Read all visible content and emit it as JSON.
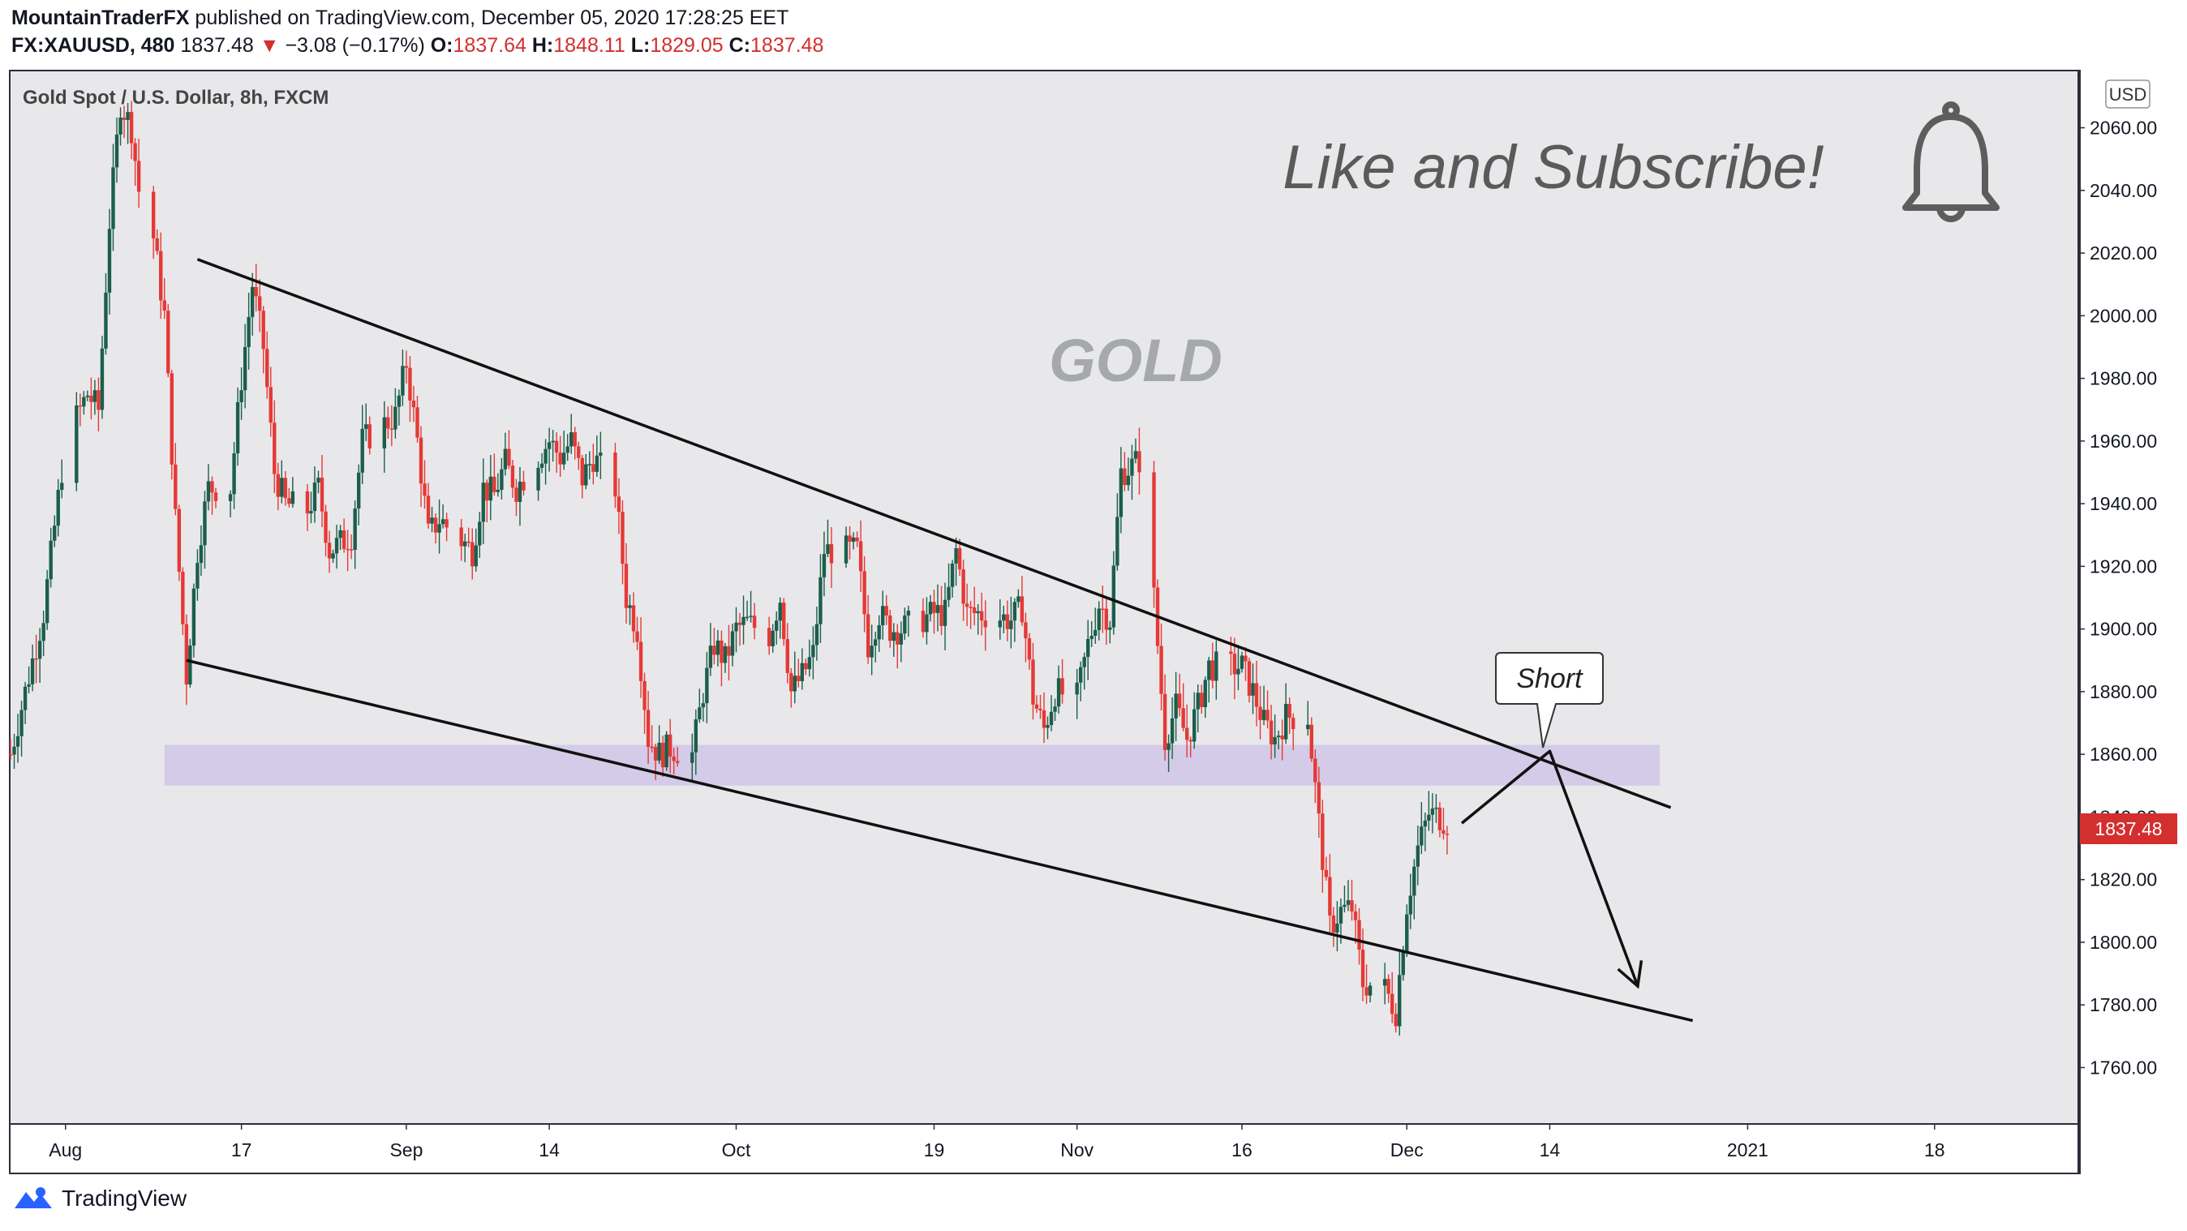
{
  "header": {
    "author": "MountainTraderFX",
    "published_text": "published on TradingView.com, December 05, 2020 17:28:25 EET",
    "symbol": "FX:XAUUSD, 480",
    "last": "1837.48",
    "change_arrow": "▼",
    "change": "−3.08 (−0.17%)",
    "o_label": "O:",
    "o_value": "1837.64",
    "h_label": "H:",
    "h_value": "1848.11",
    "l_label": "L:",
    "l_value": "1829.05",
    "c_label": "C:",
    "c_value": "1837.48"
  },
  "footer": {
    "brand": "TradingView",
    "icon": "tradingview-logo-icon"
  },
  "colors": {
    "up": "#1b5e4b",
    "down": "#e53935",
    "panel_bg": "#e8e8eb",
    "zone": "#cfc6e6",
    "price_label_bg": "#d32f2f"
  },
  "chart_data": {
    "type": "candlestick",
    "title": "Gold Spot / U.S. Dollar, 8h, FXCM",
    "currency_badge": "USD",
    "watermark": "GOLD",
    "promo_text": "Like and Subscribe!",
    "promo_icon": "bell-icon",
    "annotation": "Short",
    "last_price_label": "1837.48",
    "y_ticks": [
      "2060.00",
      "2040.00",
      "2020.00",
      "2000.00",
      "1980.00",
      "1960.00",
      "1940.00",
      "1920.00",
      "1900.00",
      "1880.00",
      "1860.00",
      "1840.00",
      "1820.00",
      "1800.00",
      "1780.00",
      "1760.00"
    ],
    "x_ticks": [
      "Aug",
      "17",
      "Sep",
      "14",
      "Oct",
      "19",
      "Nov",
      "16",
      "Dec",
      "14",
      "2021",
      "18"
    ],
    "ylim": [
      1742,
      2078
    ],
    "x_range": [
      "2020-07-27",
      "2021-01-31"
    ],
    "support_zone": [
      1850,
      1863
    ],
    "upper_trendline": [
      [
        "2020-08-13",
        2018
      ],
      [
        "2020-12-25",
        1843
      ]
    ],
    "lower_trendline": [
      [
        "2020-08-12",
        1890
      ],
      [
        "2020-12-27",
        1775
      ]
    ],
    "projection": [
      [
        "2020-12-06",
        1838
      ],
      [
        "2020-12-14",
        1861
      ],
      [
        "2020-12-22",
        1786
      ]
    ],
    "series": [
      {
        "waypoints": [
          [
            "2020-07-27",
            1860
          ],
          [
            "2020-07-28",
            1875
          ],
          [
            "2020-07-30",
            1905
          ],
          [
            "2020-08-01",
            1960
          ],
          [
            "2020-08-03",
            1975
          ],
          [
            "2020-08-04",
            1970
          ],
          [
            "2020-08-05",
            2030
          ],
          [
            "2020-08-06",
            2068
          ],
          [
            "2020-08-07",
            2060
          ],
          [
            "2020-08-08",
            2030
          ],
          [
            "2020-08-09",
            2025
          ],
          [
            "2020-08-10",
            2000
          ],
          [
            "2020-08-11",
            1935
          ],
          [
            "2020-08-12",
            1885
          ],
          [
            "2020-08-13",
            1925
          ],
          [
            "2020-08-14",
            1945
          ],
          [
            "2020-08-16",
            1945
          ],
          [
            "2020-08-17",
            1980
          ],
          [
            "2020-08-18",
            2010
          ],
          [
            "2020-08-19",
            1990
          ],
          [
            "2020-08-20",
            1950
          ],
          [
            "2020-08-21",
            1940
          ],
          [
            "2020-08-23",
            1938
          ],
          [
            "2020-08-24",
            1945
          ],
          [
            "2020-08-25",
            1925
          ],
          [
            "2020-08-27",
            1930
          ],
          [
            "2020-08-28",
            1960
          ],
          [
            "2020-08-31",
            1968
          ],
          [
            "2020-09-01",
            1985
          ],
          [
            "2020-09-02",
            1960
          ],
          [
            "2020-09-03",
            1930
          ],
          [
            "2020-09-04",
            1935
          ],
          [
            "2020-09-07",
            1925
          ],
          [
            "2020-09-08",
            1945
          ],
          [
            "2020-09-09",
            1943
          ],
          [
            "2020-09-10",
            1953
          ],
          [
            "2020-09-11",
            1945
          ],
          [
            "2020-09-14",
            1960
          ],
          [
            "2020-09-15",
            1955
          ],
          [
            "2020-09-16",
            1960
          ],
          [
            "2020-09-17",
            1948
          ],
          [
            "2020-09-18",
            1955
          ],
          [
            "2020-09-20",
            1945
          ],
          [
            "2020-09-21",
            1910
          ],
          [
            "2020-09-22",
            1900
          ],
          [
            "2020-09-23",
            1865
          ],
          [
            "2020-09-24",
            1860
          ],
          [
            "2020-09-25",
            1862
          ],
          [
            "2020-09-27",
            1860
          ],
          [
            "2020-09-28",
            1880
          ],
          [
            "2020-09-29",
            1895
          ],
          [
            "2020-09-30",
            1890
          ],
          [
            "2020-10-01",
            1900
          ],
          [
            "2020-10-02",
            1902
          ],
          [
            "2020-10-04",
            1898
          ],
          [
            "2020-10-05",
            1910
          ],
          [
            "2020-10-06",
            1880
          ],
          [
            "2020-10-07",
            1885
          ],
          [
            "2020-10-08",
            1892
          ],
          [
            "2020-10-09",
            1925
          ],
          [
            "2020-10-11",
            1925
          ],
          [
            "2020-10-12",
            1925
          ],
          [
            "2020-10-13",
            1895
          ],
          [
            "2020-10-14",
            1905
          ],
          [
            "2020-10-15",
            1900
          ],
          [
            "2020-10-16",
            1900
          ],
          [
            "2020-10-19",
            1905
          ],
          [
            "2020-10-20",
            1905
          ],
          [
            "2020-10-21",
            1925
          ],
          [
            "2020-10-22",
            1905
          ],
          [
            "2020-10-23",
            1905
          ],
          [
            "2020-10-26",
            1903
          ],
          [
            "2020-10-27",
            1907
          ],
          [
            "2020-10-28",
            1878
          ],
          [
            "2020-10-29",
            1868
          ],
          [
            "2020-10-30",
            1880
          ],
          [
            "2020-11-01",
            1878
          ],
          [
            "2020-11-02",
            1895
          ],
          [
            "2020-11-03",
            1908
          ],
          [
            "2020-11-04",
            1903
          ],
          [
            "2020-11-05",
            1950
          ],
          [
            "2020-11-06",
            1952
          ],
          [
            "2020-11-07",
            1955
          ],
          [
            "2020-11-09",
            1865
          ],
          [
            "2020-11-10",
            1875
          ],
          [
            "2020-11-11",
            1865
          ],
          [
            "2020-11-12",
            1875
          ],
          [
            "2020-11-13",
            1888
          ],
          [
            "2020-11-15",
            1888
          ],
          [
            "2020-11-16",
            1888
          ],
          [
            "2020-11-17",
            1880
          ],
          [
            "2020-11-18",
            1870
          ],
          [
            "2020-11-19",
            1865
          ],
          [
            "2020-11-20",
            1872
          ],
          [
            "2020-11-22",
            1872
          ],
          [
            "2020-11-23",
            1838
          ],
          [
            "2020-11-24",
            1805
          ],
          [
            "2020-11-25",
            1810
          ],
          [
            "2020-11-26",
            1811
          ],
          [
            "2020-11-27",
            1787
          ],
          [
            "2020-11-29",
            1785
          ],
          [
            "2020-11-30",
            1778
          ],
          [
            "2020-12-01",
            1812
          ],
          [
            "2020-12-02",
            1830
          ],
          [
            "2020-12-03",
            1841
          ],
          [
            "2020-12-04",
            1840
          ],
          [
            "2020-12-05",
            1837.48
          ]
        ]
      }
    ]
  }
}
